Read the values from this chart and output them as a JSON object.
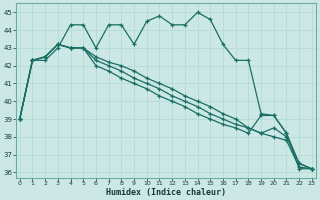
{
  "xlabel": "Humidex (Indice chaleur)",
  "bg_color": "#cce8e4",
  "line_color": "#1a6e64",
  "grid_color": "#b8ddd8",
  "xlim": [
    -0.3,
    23.3
  ],
  "ylim": [
    35.7,
    45.5
  ],
  "yticks": [
    36,
    37,
    38,
    39,
    40,
    41,
    42,
    43,
    44,
    45
  ],
  "xticks": [
    0,
    1,
    2,
    3,
    4,
    5,
    6,
    7,
    8,
    9,
    10,
    11,
    12,
    13,
    14,
    15,
    16,
    17,
    18,
    19,
    20,
    21,
    22,
    23
  ],
  "series": [
    [
      39.0,
      42.3,
      42.3,
      43.0,
      44.3,
      44.3,
      43.0,
      44.3,
      44.3,
      43.2,
      44.5,
      44.8,
      44.3,
      44.3,
      45.0,
      44.6,
      43.2,
      42.3,
      42.3,
      39.3,
      39.2,
      38.2,
      36.2,
      36.2
    ],
    [
      39.0,
      42.3,
      42.5,
      43.2,
      43.0,
      43.0,
      42.5,
      42.2,
      42.0,
      41.7,
      41.3,
      41.0,
      40.7,
      40.3,
      40.0,
      39.7,
      39.3,
      39.0,
      38.5,
      38.2,
      38.0,
      37.8,
      36.3,
      36.2
    ],
    [
      39.0,
      42.3,
      42.5,
      43.2,
      43.0,
      43.0,
      42.3,
      42.0,
      41.7,
      41.3,
      41.0,
      40.7,
      40.3,
      40.0,
      39.7,
      39.3,
      39.0,
      38.7,
      38.5,
      38.2,
      38.5,
      38.0,
      36.5,
      36.2
    ],
    [
      39.0,
      42.3,
      42.5,
      43.2,
      43.0,
      43.0,
      42.0,
      41.7,
      41.3,
      41.0,
      40.7,
      40.3,
      40.0,
      39.7,
      39.3,
      39.0,
      38.7,
      38.5,
      38.2,
      39.2,
      39.2,
      38.2,
      36.5,
      36.2
    ]
  ]
}
